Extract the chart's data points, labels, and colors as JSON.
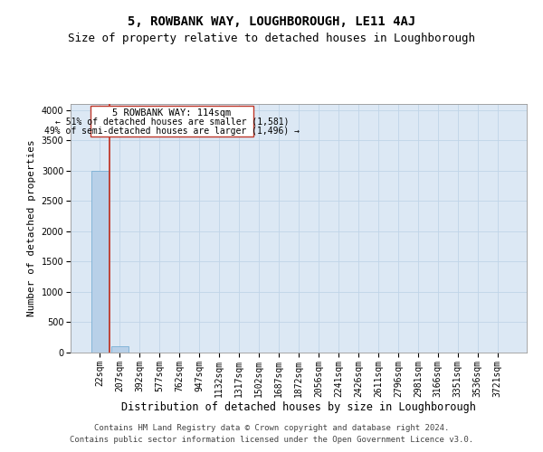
{
  "title": "5, ROWBANK WAY, LOUGHBOROUGH, LE11 4AJ",
  "subtitle": "Size of property relative to detached houses in Loughborough",
  "xlabel": "Distribution of detached houses by size in Loughborough",
  "ylabel": "Number of detached properties",
  "footer_line1": "Contains HM Land Registry data © Crown copyright and database right 2024.",
  "footer_line2": "Contains public sector information licensed under the Open Government Licence v3.0.",
  "categories": [
    "22sqm",
    "207sqm",
    "392sqm",
    "577sqm",
    "762sqm",
    "947sqm",
    "1132sqm",
    "1317sqm",
    "1502sqm",
    "1687sqm",
    "1872sqm",
    "2056sqm",
    "2241sqm",
    "2426sqm",
    "2611sqm",
    "2796sqm",
    "2981sqm",
    "3166sqm",
    "3351sqm",
    "3536sqm",
    "3721sqm"
  ],
  "values": [
    3000,
    100,
    0,
    0,
    0,
    0,
    0,
    0,
    0,
    0,
    0,
    0,
    0,
    0,
    0,
    0,
    0,
    0,
    0,
    0,
    0
  ],
  "bar_color": "#b8d0e8",
  "bar_edge_color": "#7aafd4",
  "property_marker_color": "#c0392b",
  "annotation_title": "5 ROWBANK WAY: 114sqm",
  "annotation_line1": "← 51% of detached houses are smaller (1,581)",
  "annotation_line2": "49% of semi-detached houses are larger (1,496) →",
  "annotation_box_color": "#ffffff",
  "annotation_box_edge_color": "#c0392b",
  "ylim": [
    0,
    4100
  ],
  "yticks": [
    0,
    500,
    1000,
    1500,
    2000,
    2500,
    3000,
    3500,
    4000
  ],
  "grid_color": "#c0d4e8",
  "plot_bg_color": "#dce8f4",
  "title_fontsize": 10,
  "subtitle_fontsize": 9,
  "tick_fontsize": 7,
  "ylabel_fontsize": 8,
  "xlabel_fontsize": 8.5,
  "footer_fontsize": 6.5,
  "ann_title_fontsize": 7.5,
  "ann_text_fontsize": 7
}
